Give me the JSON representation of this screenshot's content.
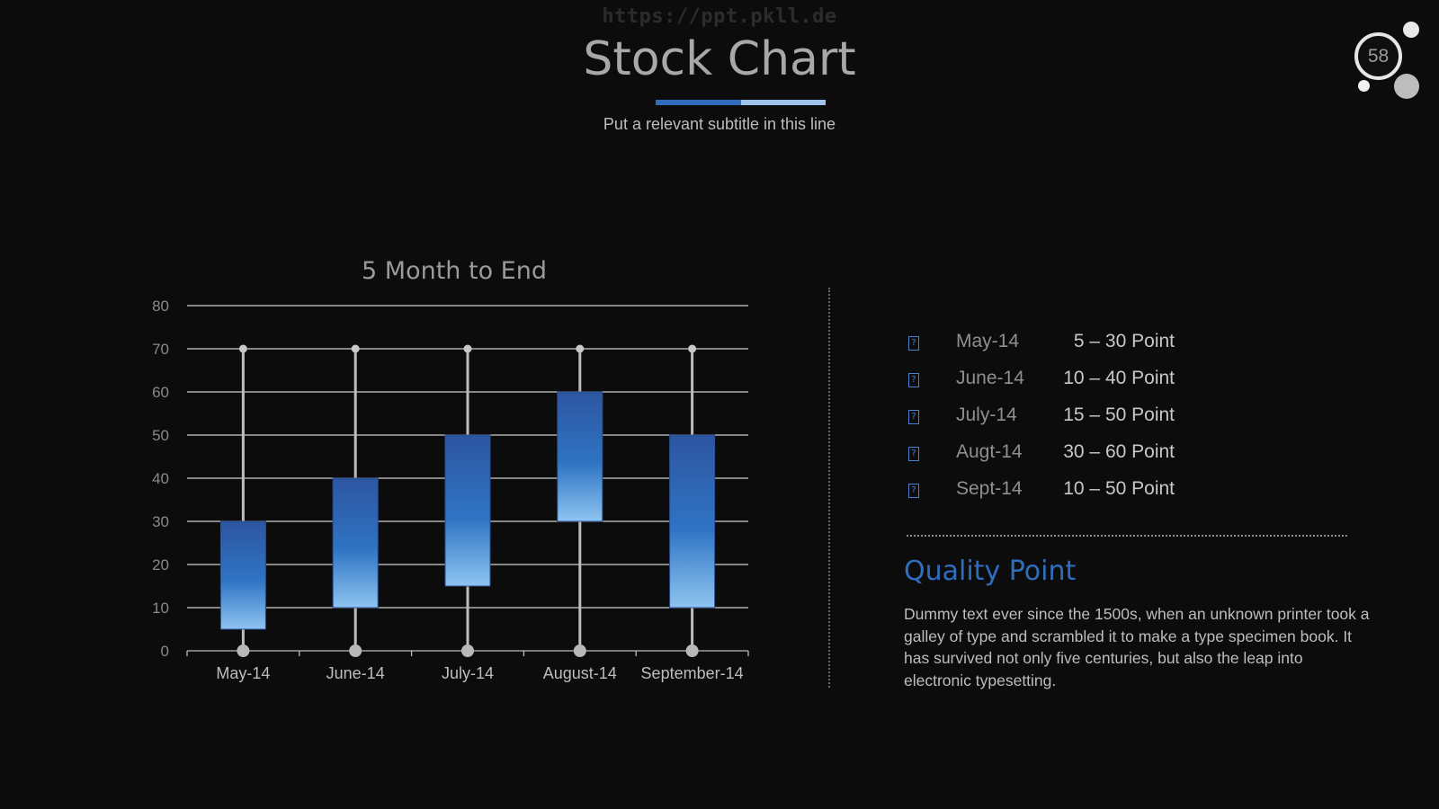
{
  "header": {
    "watermark": "https://ppt.pkll.de",
    "title": "Stock Chart",
    "subtitle": "Put a relevant subtitle in this line",
    "page_number": "58"
  },
  "colors": {
    "accent": "#2f6dbd",
    "accent_light": "#9fc3ec",
    "box_top": "#2d55a0",
    "box_bottom": "#8ec4f0",
    "background": "#0c0c0d"
  },
  "chart_data": {
    "type": "box",
    "title": "5 Month to End",
    "xlabel": "",
    "ylabel": "",
    "categories": [
      "May-14",
      "June-14",
      "July-14",
      "August-14",
      "September-14"
    ],
    "series": [
      {
        "name": "",
        "low": [
          0,
          0,
          0,
          0,
          0
        ],
        "open": [
          5,
          10,
          15,
          30,
          10
        ],
        "close": [
          30,
          40,
          50,
          60,
          50
        ],
        "high": [
          70,
          70,
          70,
          70,
          70
        ]
      }
    ],
    "ylim": [
      0,
      80
    ],
    "yticks": [
      0,
      10,
      20,
      30,
      40,
      50,
      60,
      70,
      80
    ],
    "grid": true,
    "legend": "none"
  },
  "legend": {
    "items": [
      {
        "icon": "document-icon",
        "month": "May-14",
        "range": "5 – 30 Point"
      },
      {
        "icon": "document-icon",
        "month": "June-14",
        "range": "10 – 40 Point"
      },
      {
        "icon": "document-icon",
        "month": "July-14",
        "range": "15 – 50 Point"
      },
      {
        "icon": "document-icon",
        "month": "Augt-14",
        "range": "30 – 60 Point"
      },
      {
        "icon": "document-icon",
        "month": "Sept-14",
        "range": "10 – 50 Point"
      }
    ]
  },
  "quality": {
    "heading": "Quality Point",
    "body": "Dummy text ever since the 1500s, when an unknown printer took a galley of type and scrambled it to make a type specimen book. It has survived not only five centuries, but also the leap into electronic typesetting."
  }
}
